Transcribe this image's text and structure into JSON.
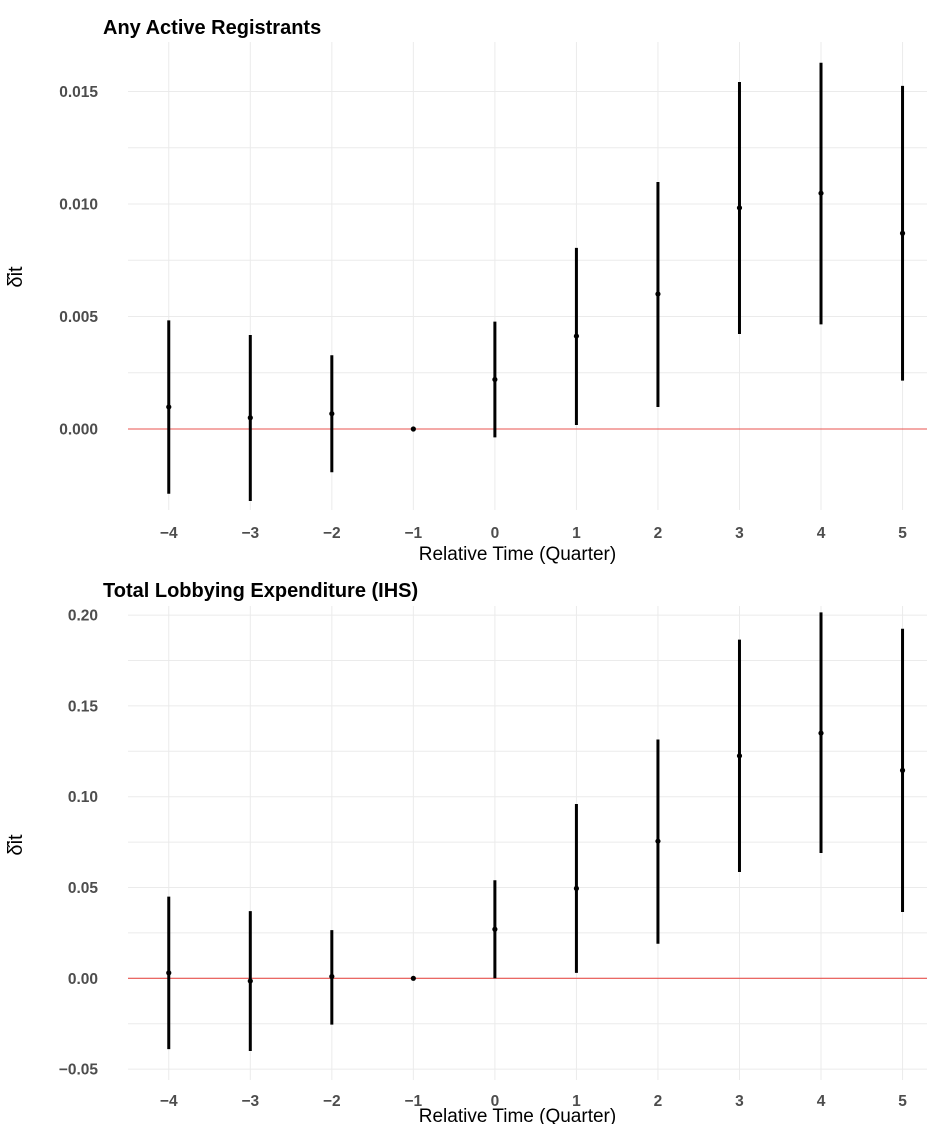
{
  "chart_data": [
    {
      "type": "errorbar",
      "title": "Any Active Registrants",
      "xlabel": "Relative Time (Quarter)",
      "ylabel": "δ̂it",
      "x": [
        -4,
        -3,
        -2,
        -1,
        0,
        1,
        2,
        3,
        4,
        5
      ],
      "x_tick_labels": [
        "−4",
        "−3",
        "−2",
        "−1",
        "0",
        "1",
        "2",
        "3",
        "4",
        "5"
      ],
      "estimate": [
        0.00098,
        0.0005,
        0.00068,
        0.0,
        0.0022,
        0.00413,
        0.006,
        0.00983,
        0.01048,
        0.0087
      ],
      "ci_low": [
        -0.00288,
        -0.0032,
        -0.00192,
        0.0,
        -0.00037,
        0.00018,
        0.00098,
        0.00422,
        0.00465,
        0.00215
      ],
      "ci_high": [
        0.00483,
        0.00418,
        0.00328,
        0.0,
        0.00477,
        0.00805,
        0.01098,
        0.01542,
        0.01628,
        0.01525
      ],
      "y_ticks": [
        0.0,
        0.005,
        0.01,
        0.015
      ],
      "y_tick_labels": [
        "0.000",
        "0.005",
        "0.010",
        "0.015"
      ],
      "xlim": [
        -4.5,
        5.3
      ],
      "ylim": [
        -0.0036,
        0.0172
      ],
      "reference_line": {
        "y": 0,
        "color": "#e8534f"
      },
      "grid": true
    },
    {
      "type": "errorbar",
      "title": "Total Lobbying Expenditure (IHS)",
      "xlabel": "Relative Time (Quarter)",
      "ylabel": "δ̂it",
      "x": [
        -4,
        -3,
        -2,
        -1,
        0,
        1,
        2,
        3,
        4,
        5
      ],
      "x_tick_labels": [
        "−4",
        "−3",
        "−2",
        "−1",
        "0",
        "1",
        "2",
        "3",
        "4",
        "5"
      ],
      "estimate": [
        0.003,
        -0.0015,
        0.001,
        0.0,
        0.027,
        0.0495,
        0.0755,
        0.1225,
        0.135,
        0.1145
      ],
      "ci_low": [
        -0.039,
        -0.04,
        -0.0255,
        0.0,
        0.0,
        0.003,
        0.019,
        0.0585,
        0.069,
        0.0365
      ],
      "ci_high": [
        0.045,
        0.037,
        0.0265,
        0.0,
        0.054,
        0.096,
        0.1315,
        0.1865,
        0.2015,
        0.1925
      ],
      "y_ticks": [
        -0.05,
        0.0,
        0.05,
        0.1,
        0.15,
        0.2
      ],
      "y_tick_labels": [
        "−0.05",
        "0.00",
        "0.05",
        "0.10",
        "0.15",
        "0.20"
      ],
      "xlim": [
        -4.5,
        5.3
      ],
      "ylim": [
        -0.056,
        0.205
      ],
      "reference_line": {
        "y": 0,
        "color": "#e8534f"
      },
      "grid": true
    }
  ]
}
